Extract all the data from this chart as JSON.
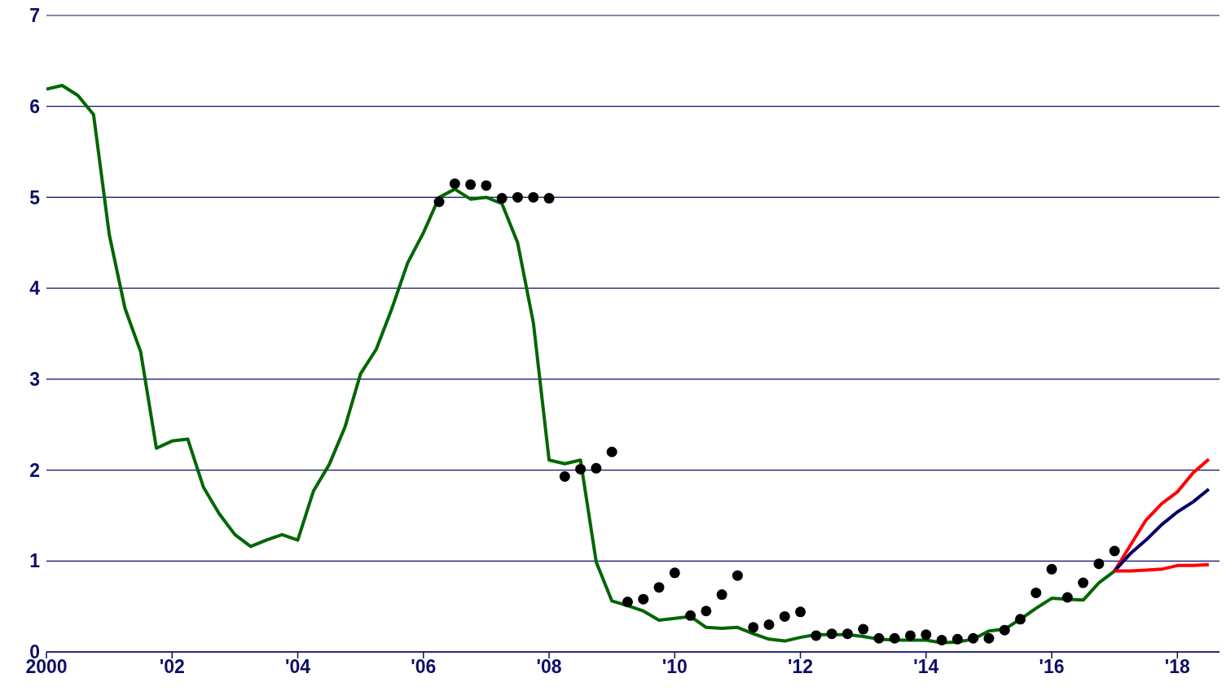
{
  "chart_data": {
    "type": "line",
    "x": [
      2000,
      2000.25,
      2000.5,
      2000.75,
      2001,
      2001.25,
      2001.5,
      2001.75,
      2002,
      2002.25,
      2002.5,
      2002.75,
      2003,
      2003.25,
      2003.5,
      2003.75,
      2004,
      2004.25,
      2004.5,
      2004.75,
      2005,
      2005.25,
      2005.5,
      2005.75,
      2006,
      2006.25,
      2006.5,
      2006.75,
      2007,
      2007.25,
      2007.5,
      2007.75,
      2008,
      2008.25,
      2008.5,
      2008.75,
      2009,
      2009.25,
      2009.5,
      2009.75,
      2010,
      2010.25,
      2010.5,
      2010.75,
      2011,
      2011.25,
      2011.5,
      2011.75,
      2012,
      2012.25,
      2012.5,
      2012.75,
      2013,
      2013.25,
      2013.5,
      2013.75,
      2014,
      2014.25,
      2014.5,
      2014.75,
      2015,
      2015.25,
      2015.5,
      2015.75,
      2016,
      2016.25,
      2016.5,
      2016.75,
      2017,
      2017.25,
      2017.5,
      2017.75,
      2018,
      2018.25,
      2018.5
    ],
    "series": [
      {
        "color": "#006600",
        "values": [
          6.19,
          6.23,
          6.12,
          5.91,
          4.59,
          3.78,
          3.3,
          2.24,
          2.32,
          2.34,
          1.81,
          1.52,
          1.29,
          1.16,
          1.23,
          1.29,
          1.23,
          1.77,
          2.06,
          2.47,
          3.06,
          3.33,
          3.78,
          4.28,
          4.61,
          5.0,
          5.09,
          4.98,
          5.0,
          4.93,
          4.5,
          3.62,
          2.11,
          2.07,
          2.11,
          0.99,
          0.56,
          0.51,
          0.45,
          0.35,
          0.37,
          0.39,
          0.27,
          0.26,
          0.27,
          0.2,
          0.14,
          0.12,
          0.16,
          0.19,
          0.19,
          0.19,
          0.17,
          0.14,
          0.13,
          0.13,
          0.13,
          0.1,
          0.11,
          0.14,
          0.23,
          0.25,
          0.36,
          0.48,
          0.59,
          0.58,
          0.57,
          0.76,
          0.89,
          null,
          null,
          null,
          null,
          null,
          null
        ]
      },
      {
        "type": "scatter",
        "color": "#000000",
        "marker": "circle",
        "values": [
          null,
          null,
          null,
          null,
          null,
          null,
          null,
          null,
          null,
          null,
          null,
          null,
          null,
          null,
          null,
          null,
          null,
          null,
          null,
          null,
          null,
          null,
          null,
          null,
          null,
          4.95,
          5.15,
          5.14,
          5.13,
          4.99,
          5.0,
          5.0,
          4.99,
          1.93,
          2.01,
          2.02,
          2.2,
          0.55,
          0.58,
          0.71,
          0.87,
          0.4,
          0.45,
          0.63,
          0.84,
          0.27,
          0.3,
          0.39,
          0.44,
          0.18,
          0.2,
          0.2,
          0.25,
          0.15,
          0.15,
          0.18,
          0.19,
          0.13,
          0.14,
          0.15,
          0.15,
          0.24,
          0.36,
          0.65,
          0.91,
          0.6,
          0.76,
          0.97,
          1.11,
          null,
          null,
          null,
          null,
          null,
          null
        ]
      },
      {
        "color": "#ff0000",
        "values": [
          null,
          null,
          null,
          null,
          null,
          null,
          null,
          null,
          null,
          null,
          null,
          null,
          null,
          null,
          null,
          null,
          null,
          null,
          null,
          null,
          null,
          null,
          null,
          null,
          null,
          null,
          null,
          null,
          null,
          null,
          null,
          null,
          null,
          null,
          null,
          null,
          null,
          null,
          null,
          null,
          null,
          null,
          null,
          null,
          null,
          null,
          null,
          null,
          null,
          null,
          null,
          null,
          null,
          null,
          null,
          null,
          null,
          null,
          null,
          null,
          null,
          null,
          null,
          null,
          null,
          null,
          null,
          null,
          0.89,
          1.17,
          1.45,
          1.63,
          1.76,
          1.97,
          2.12
        ]
      },
      {
        "color": "#000066",
        "values": [
          null,
          null,
          null,
          null,
          null,
          null,
          null,
          null,
          null,
          null,
          null,
          null,
          null,
          null,
          null,
          null,
          null,
          null,
          null,
          null,
          null,
          null,
          null,
          null,
          null,
          null,
          null,
          null,
          null,
          null,
          null,
          null,
          null,
          null,
          null,
          null,
          null,
          null,
          null,
          null,
          null,
          null,
          null,
          null,
          null,
          null,
          null,
          null,
          null,
          null,
          null,
          null,
          null,
          null,
          null,
          null,
          null,
          null,
          null,
          null,
          null,
          null,
          null,
          null,
          null,
          null,
          null,
          null,
          0.89,
          1.08,
          1.23,
          1.4,
          1.54,
          1.65,
          1.79
        ]
      },
      {
        "color": "#ff0000",
        "values": [
          null,
          null,
          null,
          null,
          null,
          null,
          null,
          null,
          null,
          null,
          null,
          null,
          null,
          null,
          null,
          null,
          null,
          null,
          null,
          null,
          null,
          null,
          null,
          null,
          null,
          null,
          null,
          null,
          null,
          null,
          null,
          null,
          null,
          null,
          null,
          null,
          null,
          null,
          null,
          null,
          null,
          null,
          null,
          null,
          null,
          null,
          null,
          null,
          null,
          null,
          null,
          null,
          null,
          null,
          null,
          null,
          null,
          null,
          null,
          null,
          null,
          null,
          null,
          null,
          null,
          null,
          null,
          null,
          0.89,
          0.89,
          0.9,
          0.91,
          0.95,
          0.95,
          0.96
        ]
      }
    ],
    "xlim": [
      2000,
      2018.67
    ],
    "xticks": [
      {
        "value": 2000,
        "label": "2000"
      },
      {
        "value": 2002,
        "label": "'02"
      },
      {
        "value": 2004,
        "label": "'04"
      },
      {
        "value": 2006,
        "label": "'06"
      },
      {
        "value": 2008,
        "label": "'08"
      },
      {
        "value": 2010,
        "label": "'10"
      },
      {
        "value": 2012,
        "label": "'12"
      },
      {
        "value": 2014,
        "label": "'14"
      },
      {
        "value": 2016,
        "label": "'16"
      },
      {
        "value": 2018,
        "label": "'18"
      }
    ],
    "ylim": [
      0,
      7
    ],
    "yticks": [
      0,
      1,
      2,
      3,
      4,
      5,
      6,
      7
    ],
    "grid": "y",
    "legend": false,
    "line_style": "solid"
  }
}
